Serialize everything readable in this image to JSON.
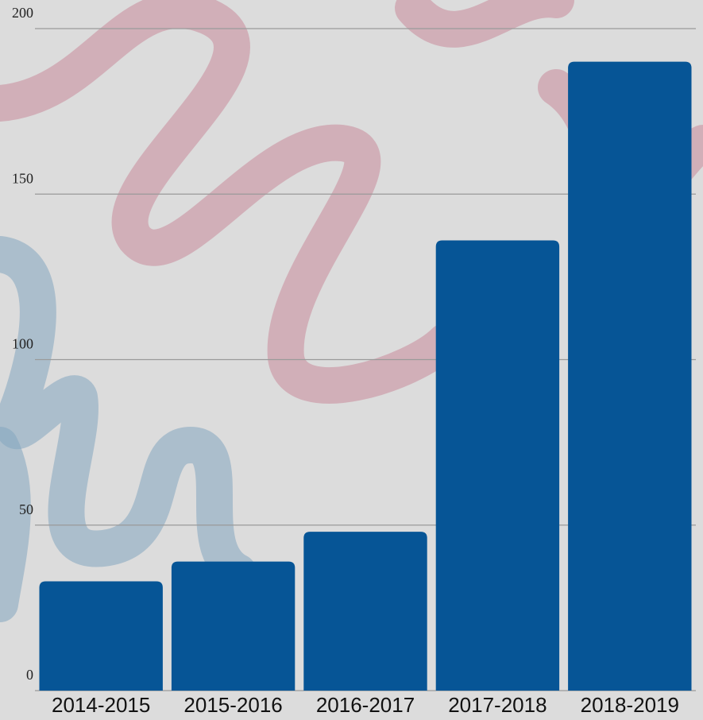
{
  "chart_data": {
    "type": "bar",
    "categories": [
      "2014-2015",
      "2015-2016",
      "2016-2017",
      "2017-2018",
      "2018-2019"
    ],
    "values": [
      33,
      39,
      48,
      136,
      190
    ],
    "color": "#065596",
    "ylim": [
      0,
      200
    ],
    "yticks": [
      0,
      50,
      100,
      150,
      200
    ],
    "grid": true
  }
}
